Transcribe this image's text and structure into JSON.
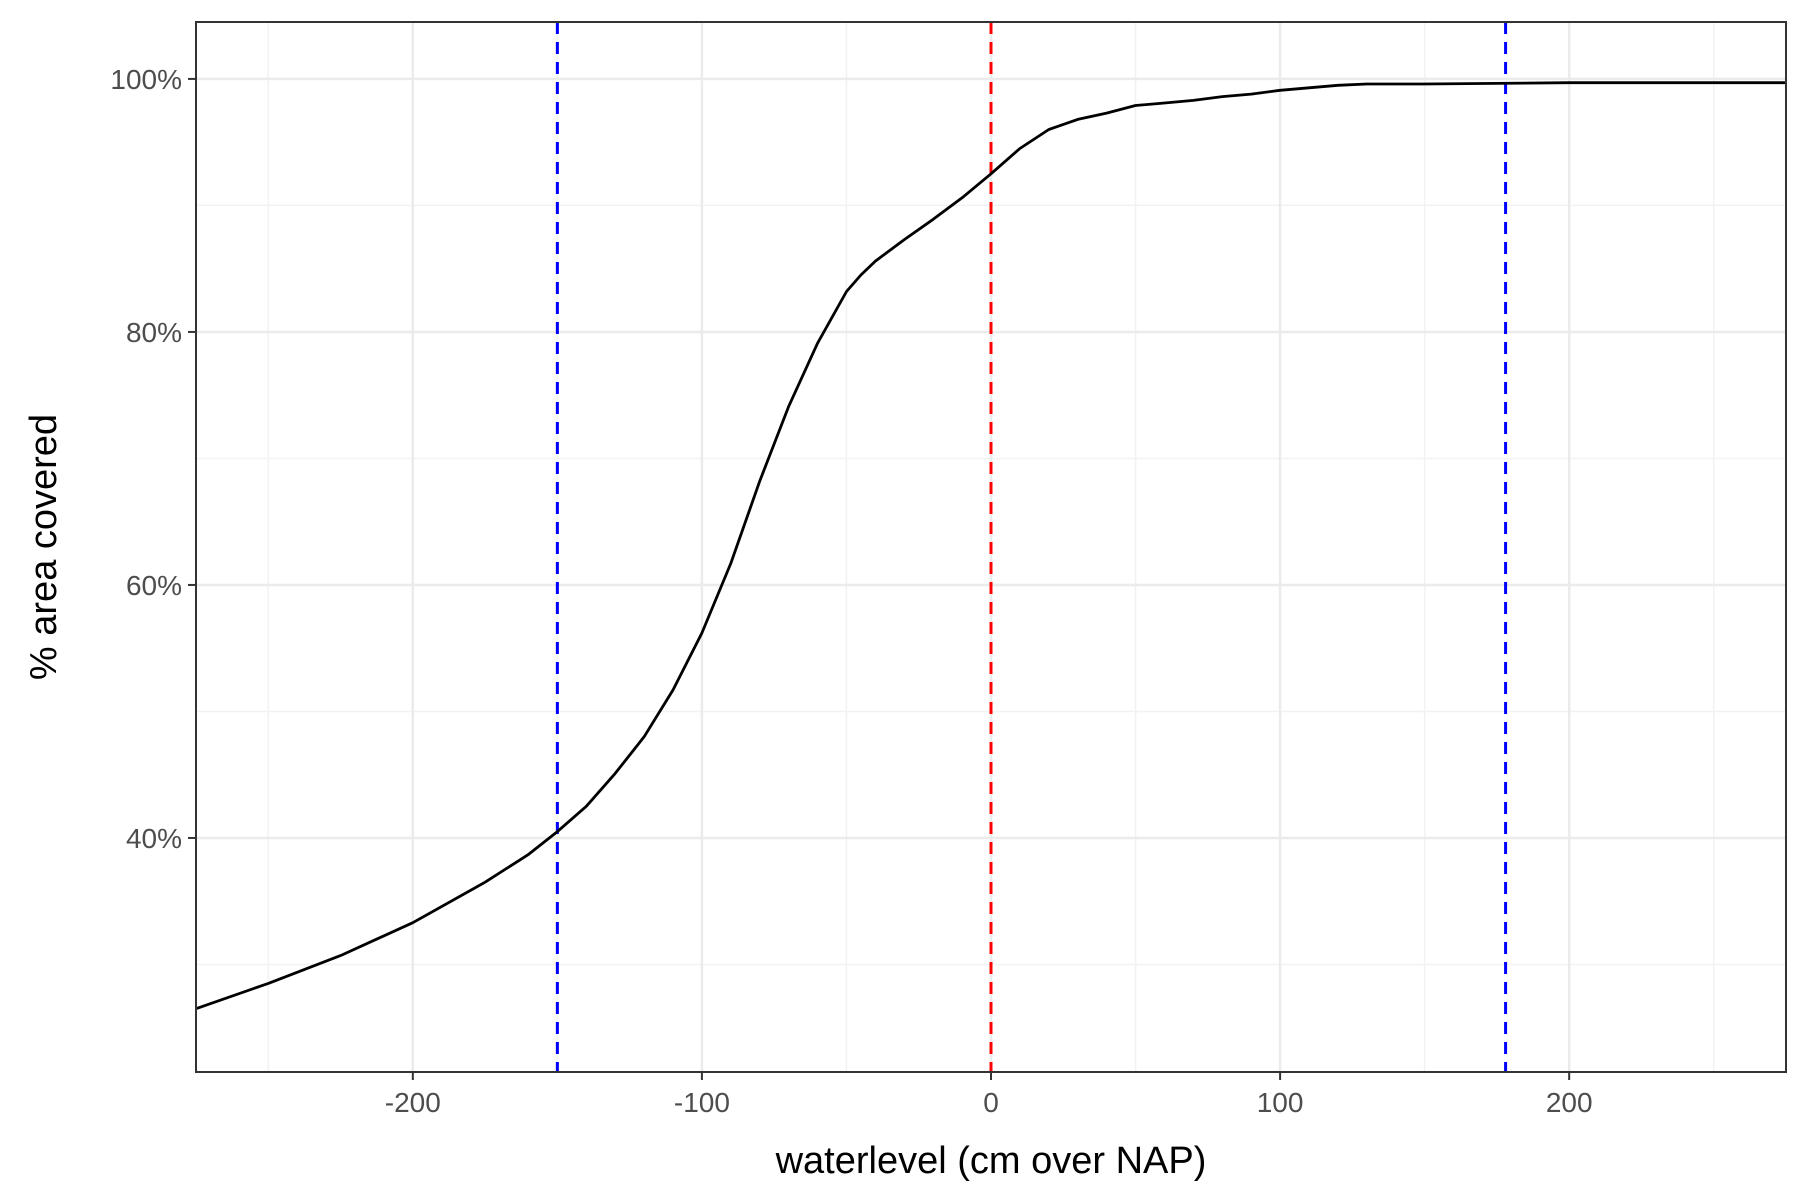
{
  "chart_data": {
    "type": "line",
    "title": "",
    "xlabel": "waterlevel (cm over NAP)",
    "ylabel": "% area covered",
    "xlim": [
      -275,
      275
    ],
    "ylim": [
      0.215,
      1.045
    ],
    "x_ticks": [
      -200,
      -100,
      0,
      100,
      200
    ],
    "x_tick_labels": [
      "-200",
      "-100",
      "0",
      "100",
      "200"
    ],
    "y_ticks": [
      0.4,
      0.6,
      0.8,
      1.0
    ],
    "y_tick_labels": [
      "40%",
      "60%",
      "80%",
      "100%"
    ],
    "grid": true,
    "legend": "none",
    "series": [
      {
        "color": "#000000",
        "x": [
          -275,
          -250,
          -225,
          -200,
          -175,
          -160,
          -150,
          -140,
          -130,
          -120,
          -110,
          -100,
          -90,
          -80,
          -70,
          -60,
          -50,
          -45,
          -40,
          -30,
          -20,
          -10,
          0,
          10,
          20,
          30,
          40,
          50,
          60,
          70,
          80,
          90,
          100,
          110,
          120,
          130,
          150,
          200,
          275
        ],
        "y": [
          0.265,
          0.285,
          0.307,
          0.333,
          0.365,
          0.387,
          0.405,
          0.425,
          0.451,
          0.48,
          0.517,
          0.562,
          0.617,
          0.682,
          0.741,
          0.791,
          0.832,
          0.845,
          0.856,
          0.873,
          0.889,
          0.906,
          0.925,
          0.945,
          0.96,
          0.968,
          0.973,
          0.979,
          0.981,
          0.983,
          0.986,
          0.988,
          0.991,
          0.993,
          0.995,
          0.996,
          0.996,
          0.997,
          0.997
        ]
      }
    ],
    "reference_lines": [
      {
        "orientation": "vertical",
        "x": -150,
        "color": "#0000ff",
        "style": "dashed"
      },
      {
        "orientation": "vertical",
        "x": 0,
        "color": "#ff0000",
        "style": "dashed"
      },
      {
        "orientation": "vertical",
        "x": 178,
        "color": "#0000ff",
        "style": "dashed"
      }
    ],
    "colors": {
      "panel_border": "#333333",
      "grid_major": "#ebebeb",
      "grid_minor": "#f2f2f2",
      "tick_text": "#4d4d4d"
    }
  }
}
